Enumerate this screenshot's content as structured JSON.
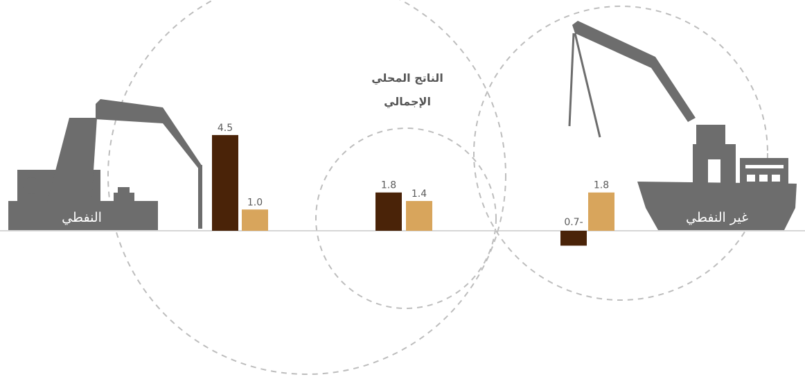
{
  "chart_data": {
    "type": "bar",
    "categories": [
      "النفطي",
      "الناتج المحلي الإجمالي",
      "غير النفطي"
    ],
    "title_lines": [
      "الناتج المحلي",
      "الإجمالي"
    ],
    "series": [
      {
        "values": [
          4.5,
          1.8,
          -0.7
        ],
        "labels": [
          "4.5",
          "1.8",
          "0.7-"
        ]
      },
      {
        "values": [
          1.0,
          1.4,
          1.8
        ],
        "labels": [
          "1.0",
          "1.4",
          "1.8"
        ]
      }
    ],
    "colors": {
      "series_1": "#4a2308",
      "series_2": "#d8a55c",
      "icon": "#6d6d6d",
      "axis": "#c8c8c8",
      "circle": "#bdbdbd"
    },
    "icons": [
      "oil-pump-jack-icon",
      "port-crane-ship-icon"
    ],
    "grid": false
  },
  "labels": {
    "oil": "النفطي",
    "non_oil": "غير النفطي"
  }
}
